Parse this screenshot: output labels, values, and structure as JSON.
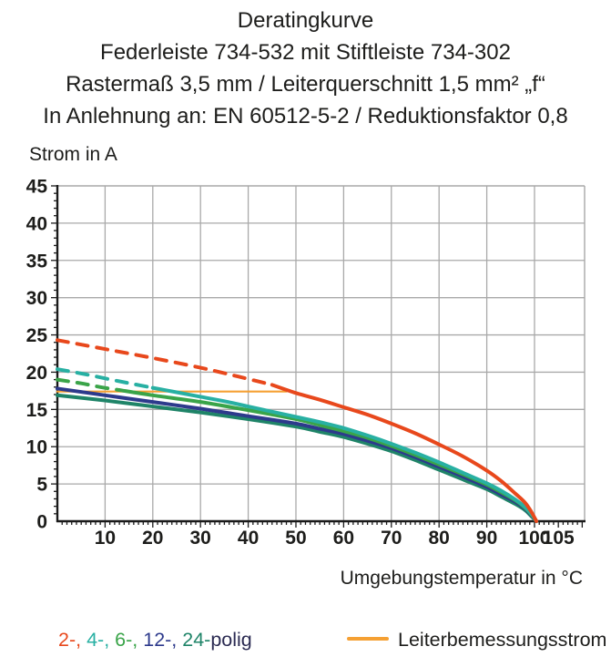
{
  "title": {
    "line1": "Deratingkurve",
    "line2": "Federleiste 734-532 mit Stiftleiste 734-302",
    "line3": "Rastermaß 3,5 mm / Leiterquerschnitt 1,5 mm² „f“",
    "line4": "In Anlehnung an: EN 60512-5-2 / Reduktionsfaktor 0,8"
  },
  "chart_data": {
    "type": "line",
    "title": "Deratingkurve",
    "xlabel": "Umgebungstemperatur in °C",
    "ylabel": "Strom in A",
    "xlim": [
      0,
      110.5
    ],
    "ylim": [
      0,
      45
    ],
    "x_major_ticks": [
      10,
      20,
      30,
      40,
      50,
      60,
      70,
      80,
      90,
      100,
      105
    ],
    "y_major_ticks": [
      0,
      5,
      10,
      15,
      20,
      25,
      30,
      35,
      40,
      45
    ],
    "x_minor_step": 1,
    "y_minor_step": 1,
    "grid": "on",
    "grid_color": "#a9a9a9",
    "axis_color": "#1a1a1a",
    "series": [
      {
        "name": "Leiterbemessungsstrom",
        "color": "#f5a033",
        "width": 2.2,
        "segments": [
          {
            "dash": false,
            "points": [
              [
                0,
                17.4
              ],
              [
                48,
                17.4
              ]
            ]
          }
        ]
      },
      {
        "name": "24-polig",
        "color": "#1f8468",
        "width": 4,
        "segments": [
          {
            "dash": false,
            "points": [
              [
                0,
                16.9
              ],
              [
                10,
                16.2
              ],
              [
                20,
                15.4
              ],
              [
                30,
                14.6
              ],
              [
                40,
                13.7
              ],
              [
                50,
                12.7
              ],
              [
                55,
                12.0
              ],
              [
                60,
                11.3
              ],
              [
                65,
                10.4
              ],
              [
                70,
                9.4
              ],
              [
                75,
                8.2
              ],
              [
                80,
                6.9
              ],
              [
                85,
                5.6
              ],
              [
                90,
                4.3
              ],
              [
                93,
                3.3
              ],
              [
                96,
                2.3
              ],
              [
                98,
                1.5
              ],
              [
                99.3,
                0.7
              ],
              [
                100.4,
                0
              ]
            ]
          }
        ]
      },
      {
        "name": "12-polig",
        "color": "#2d3a8c",
        "width": 4,
        "segments": [
          {
            "dash": false,
            "points": [
              [
                0,
                17.8
              ],
              [
                10,
                16.9
              ],
              [
                20,
                16.0
              ],
              [
                30,
                15.1
              ],
              [
                40,
                14.1
              ],
              [
                50,
                13.1
              ],
              [
                55,
                12.4
              ],
              [
                60,
                11.7
              ],
              [
                65,
                10.8
              ],
              [
                70,
                9.8
              ],
              [
                75,
                8.6
              ],
              [
                80,
                7.3
              ],
              [
                85,
                6.0
              ],
              [
                90,
                4.6
              ],
              [
                93,
                3.6
              ],
              [
                96,
                2.6
              ],
              [
                98,
                1.7
              ],
              [
                99.3,
                0.8
              ],
              [
                100.4,
                0
              ]
            ]
          }
        ]
      },
      {
        "name": "6-polig",
        "color": "#3aa449",
        "width": 4,
        "segments": [
          {
            "dash": true,
            "points": [
              [
                0,
                19.0
              ],
              [
                5,
                18.5
              ],
              [
                9,
                18.0
              ],
              [
                13,
                17.6
              ]
            ]
          },
          {
            "dash": false,
            "points": [
              [
                13,
                17.6
              ],
              [
                20,
                16.9
              ],
              [
                30,
                16.0
              ],
              [
                40,
                14.9
              ],
              [
                50,
                13.7
              ],
              [
                55,
                12.9
              ],
              [
                60,
                12.1
              ],
              [
                65,
                11.2
              ],
              [
                70,
                10.1
              ],
              [
                75,
                8.9
              ],
              [
                80,
                7.6
              ],
              [
                85,
                6.3
              ],
              [
                90,
                4.9
              ],
              [
                93,
                3.9
              ],
              [
                96,
                2.8
              ],
              [
                98,
                1.8
              ],
              [
                99.3,
                0.9
              ],
              [
                100.4,
                0
              ]
            ]
          }
        ]
      },
      {
        "name": "4-polig",
        "color": "#28b0a3",
        "width": 4,
        "segments": [
          {
            "dash": true,
            "points": [
              [
                0,
                20.4
              ],
              [
                6,
                19.7
              ],
              [
                12,
                18.9
              ],
              [
                16,
                18.4
              ],
              [
                20,
                17.9
              ]
            ]
          },
          {
            "dash": false,
            "points": [
              [
                20,
                17.9
              ],
              [
                25,
                17.3
              ],
              [
                30,
                16.7
              ],
              [
                35,
                16.1
              ],
              [
                40,
                15.4
              ],
              [
                45,
                14.7
              ],
              [
                50,
                14.0
              ],
              [
                55,
                13.3
              ],
              [
                60,
                12.5
              ],
              [
                65,
                11.5
              ],
              [
                70,
                10.4
              ],
              [
                75,
                9.2
              ],
              [
                80,
                7.9
              ],
              [
                85,
                6.5
              ],
              [
                90,
                5.1
              ],
              [
                93,
                4.1
              ],
              [
                96,
                2.9
              ],
              [
                98,
                1.9
              ],
              [
                99.3,
                1.0
              ],
              [
                100.4,
                0
              ]
            ]
          }
        ]
      },
      {
        "name": "2-polig",
        "color": "#e8481c",
        "width": 4,
        "segments": [
          {
            "dash": true,
            "points": [
              [
                0,
                24.3
              ],
              [
                10,
                23.1
              ],
              [
                20,
                21.9
              ],
              [
                30,
                20.6
              ],
              [
                38,
                19.4
              ],
              [
                45,
                18.3
              ]
            ]
          },
          {
            "dash": false,
            "points": [
              [
                45,
                18.3
              ],
              [
                50,
                17.2
              ],
              [
                55,
                16.3
              ],
              [
                60,
                15.3
              ],
              [
                65,
                14.3
              ],
              [
                70,
                13.1
              ],
              [
                75,
                11.8
              ],
              [
                80,
                10.3
              ],
              [
                85,
                8.7
              ],
              [
                90,
                6.8
              ],
              [
                93,
                5.4
              ],
              [
                96,
                3.7
              ],
              [
                98,
                2.5
              ],
              [
                99.3,
                1.3
              ],
              [
                100.4,
                0
              ]
            ]
          }
        ]
      }
    ]
  },
  "legend_left": {
    "items": [
      {
        "text": "2-, ",
        "color": "#e8481c"
      },
      {
        "text": "4-, ",
        "color": "#28b0a3"
      },
      {
        "text": "6-, ",
        "color": "#3aa449"
      },
      {
        "text": "12-, ",
        "color": "#2d3a8c"
      },
      {
        "text": "24-",
        "color": "#1f8468"
      },
      {
        "text": "polig",
        "color": "#2b2b52"
      }
    ]
  },
  "legend_right": {
    "label": "Leiterbemessungsstrom",
    "swatch_color": "#f5a033"
  }
}
